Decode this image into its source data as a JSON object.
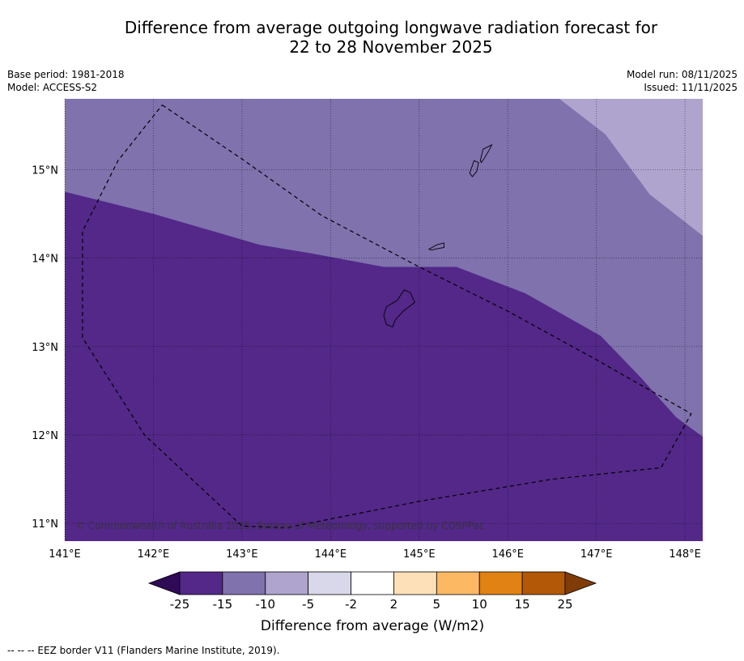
{
  "title_line1": "Difference from average outgoing longwave radiation forecast for",
  "title_line2": "22 to 28 November 2025",
  "meta_left": [
    "Base period: 1981-2018",
    "Model: ACCESS-S2"
  ],
  "meta_right": [
    "Model run: 08/11/2025",
    "Issued: 11/11/2025"
  ],
  "map": {
    "lon_range": [
      141.0,
      148.2
    ],
    "lat_range": [
      10.8,
      15.8
    ],
    "lon_ticks": [
      141,
      142,
      143,
      144,
      145,
      146,
      147,
      148
    ],
    "lon_labels": [
      "141°E",
      "142°E",
      "143°E",
      "144°E",
      "145°E",
      "146°E",
      "147°E",
      "148°E"
    ],
    "lat_ticks": [
      11,
      12,
      13,
      14,
      15
    ],
    "lat_labels": [
      "11°N",
      "12°N",
      "13°N",
      "14°N",
      "15°N"
    ],
    "copyright": "© Commonwealth of Australia 2025, Bureau of Meteorology, supported by COSPPac",
    "anomaly_fields": [
      {
        "name": "anomaly-band-minus-5-to-minus-10",
        "color": "#aea4cd",
        "outline_lonlat": [
          [
            146.58,
            15.8
          ],
          [
            147.1,
            15.4
          ],
          [
            147.6,
            14.72
          ],
          [
            148.2,
            14.25
          ],
          [
            148.2,
            15.8
          ]
        ]
      },
      {
        "name": "anomaly-band-minus-10-to-minus-15",
        "color": "#7f72ad",
        "outline_lonlat": [
          [
            141.0,
            15.8
          ],
          [
            146.58,
            15.8
          ],
          [
            147.1,
            15.4
          ],
          [
            147.6,
            14.72
          ],
          [
            148.2,
            14.25
          ],
          [
            148.2,
            11.98
          ],
          [
            147.9,
            12.2
          ],
          [
            147.5,
            12.65
          ],
          [
            147.05,
            13.12
          ],
          [
            146.2,
            13.6
          ],
          [
            145.42,
            13.9
          ],
          [
            144.6,
            13.9
          ],
          [
            143.8,
            14.05
          ],
          [
            143.2,
            14.15
          ],
          [
            142.0,
            14.5
          ],
          [
            141.0,
            14.75
          ]
        ]
      }
    ],
    "eez_border_lonlat": [
      [
        142.1,
        15.73
      ],
      [
        143.0,
        15.12
      ],
      [
        143.9,
        14.48
      ],
      [
        145.0,
        13.9
      ],
      [
        146.0,
        13.4
      ],
      [
        147.0,
        12.85
      ],
      [
        148.07,
        12.24
      ],
      [
        147.73,
        11.63
      ],
      [
        146.5,
        11.5
      ],
      [
        145.0,
        11.25
      ],
      [
        143.5,
        10.95
      ],
      [
        143.0,
        10.97
      ],
      [
        141.9,
        12.0
      ],
      [
        141.2,
        13.1
      ],
      [
        141.2,
        14.3
      ],
      [
        141.6,
        15.1
      ],
      [
        142.1,
        15.73
      ]
    ],
    "islands_lonlat": [
      {
        "name": "guam-island",
        "points": [
          [
            144.63,
            13.45
          ],
          [
            144.75,
            13.52
          ],
          [
            144.83,
            13.64
          ],
          [
            144.9,
            13.61
          ],
          [
            144.95,
            13.5
          ],
          [
            144.82,
            13.4
          ],
          [
            144.73,
            13.3
          ],
          [
            144.7,
            13.22
          ],
          [
            144.63,
            13.25
          ],
          [
            144.6,
            13.35
          ]
        ]
      },
      {
        "name": "rota-island",
        "points": [
          [
            145.11,
            14.1
          ],
          [
            145.2,
            14.15
          ],
          [
            145.28,
            14.17
          ],
          [
            145.28,
            14.12
          ],
          [
            145.18,
            14.1
          ],
          [
            145.14,
            14.09
          ]
        ]
      },
      {
        "name": "tinian-island",
        "points": [
          [
            145.57,
            14.96
          ],
          [
            145.62,
            15.1
          ],
          [
            145.67,
            15.08
          ],
          [
            145.65,
            14.98
          ],
          [
            145.6,
            14.92
          ]
        ]
      },
      {
        "name": "saipan-island",
        "points": [
          [
            145.69,
            15.1
          ],
          [
            145.72,
            15.23
          ],
          [
            145.82,
            15.28
          ],
          [
            145.79,
            15.22
          ],
          [
            145.73,
            15.12
          ],
          [
            145.7,
            15.08
          ]
        ]
      }
    ]
  },
  "colorbar": {
    "colors": [
      "#2f0a55",
      "#532888",
      "#7f72ad",
      "#aea4cd",
      "#d8d8ea",
      "#ffffff",
      "#fde0b8",
      "#fdb863",
      "#e08214",
      "#b35806",
      "#7f3b08"
    ],
    "tick_labels": [
      "-25",
      "-15",
      "-10",
      "-5",
      "-2",
      "2",
      "5",
      "10",
      "15",
      "25"
    ],
    "label": "Difference from average (W/m2)"
  },
  "footnote": "--  --  -- EEZ border V11 (Flanders Marine Institute, 2019)."
}
